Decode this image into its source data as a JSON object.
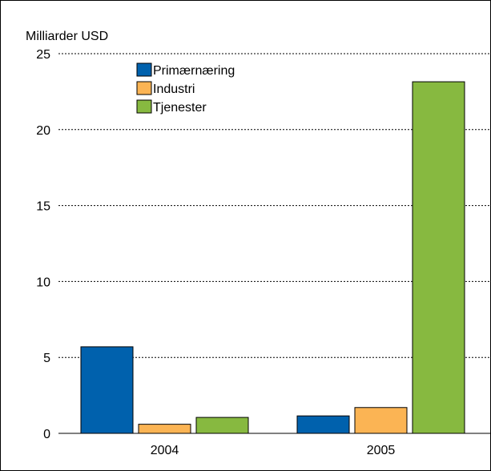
{
  "chart_data": {
    "type": "bar",
    "ylabel": "Milliarder USD",
    "categories": [
      "2004",
      "2005"
    ],
    "series": [
      {
        "name": "Primærnæring",
        "values": [
          5.7,
          1.15
        ],
        "color": "#0061ad"
      },
      {
        "name": "Industri",
        "values": [
          0.6,
          1.7
        ],
        "color": "#fbb454"
      },
      {
        "name": "Tjenester",
        "values": [
          1.05,
          23.15
        ],
        "color": "#87b940"
      }
    ],
    "ylim": [
      0,
      25
    ],
    "yticks": [
      0,
      5,
      10,
      15,
      20,
      25
    ],
    "grid": true,
    "legend_position": "top-left"
  }
}
